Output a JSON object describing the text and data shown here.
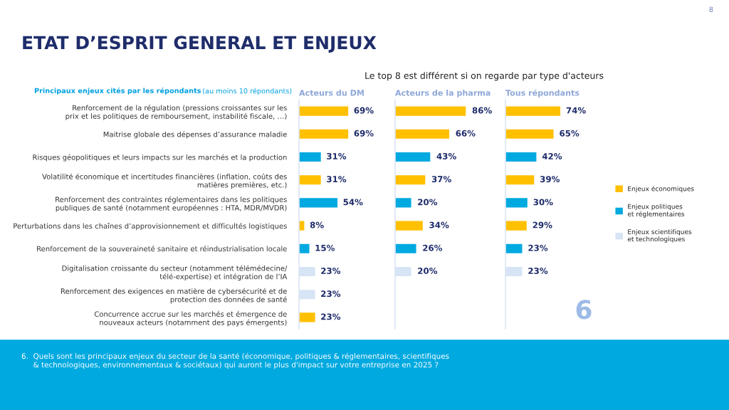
{
  "chart_data": [
    {
      "type": "bar",
      "orientation": "horizontal",
      "title": "Acteurs du DM",
      "tick_labels": "y",
      "legend": false,
      "categories": [
        "Renforcement de la régulation (pressions croissantes sur les\nprix et les politiques de remboursement, instabilité fiscale, …)",
        "Maitrise globale des dépenses d’assurance maladie",
        "Risques géopolitiques et leurs impacts sur les marchés et la production",
        "Volatilité économique et incertitudes financières (inflation, coûts des\nmatières premières, etc.)",
        "Renforcement des contraintes réglementaires dans les politiques\npubliques de santé (notamment européennes : HTA, MDR/MVDR)",
        "Perturbations dans les chaînes d’approvisionnement et difficultés logistiques",
        "Renforcement de la souveraineté sanitaire et réindustrialisation locale",
        "Digitalisation croissante du secteur (notamment télémédecine/\ntélé-expertise) et intégration de l’IA",
        "Renforcement des exigences en matière de cybersécurité et de\nprotection des données de santé",
        "Concurrence accrue sur les marchés et émergence de\nnouveaux acteurs (notamment des pays émergents)"
      ],
      "series": [
        {
          "color": "#ffc000",
          "values": [
            69,
            69,
            null,
            31,
            null,
            8,
            null,
            null,
            null,
            23
          ],
          "value_labels": [
            "69%",
            "69%",
            null,
            "31%",
            null,
            "8%",
            null,
            null,
            null,
            "23%"
          ]
        },
        {
          "color": "#00a9e0",
          "values": [
            null,
            null,
            31,
            null,
            54,
            null,
            15,
            null,
            null,
            null
          ],
          "value_labels": [
            null,
            null,
            "31%",
            null,
            "54%",
            null,
            "15%",
            null,
            null,
            null
          ]
        },
        {
          "color": "#d6e4f5",
          "values": [
            null,
            null,
            null,
            null,
            null,
            null,
            null,
            23,
            23,
            null
          ],
          "value_labels": [
            null,
            null,
            null,
            null,
            null,
            null,
            null,
            "23%",
            "23%",
            null
          ]
        }
      ],
      "annotations": [
        "ETAT D’ESPRIT GENERAL ET ENJEUX",
        "Le top 8 est différent si on regarde par type d'acteurs",
        "Principaux enjeux cités par les répondants",
        "(au moins 10 répondants)",
        "6.  Quels sont les principaux enjeux du secteur de la santé (économique, politiques & réglementaires, scientifiques\n     & technologiques, environnementaux & sociétaux) qui auront le plus d'impact sur votre entreprise en 2025 ?",
        "8",
        "6"
      ]
    },
    {
      "type": "bar",
      "orientation": "horizontal",
      "title": "Acteurs de la pharma",
      "tick_labels": false,
      "legend": false,
      "series": [
        {
          "color": "#ffc000",
          "values": [
            86,
            66,
            null,
            37,
            null,
            34,
            null,
            null,
            null,
            null
          ],
          "value_labels": [
            "86%",
            "66%",
            null,
            "37%",
            null,
            "34%",
            null,
            null,
            null,
            null
          ]
        },
        {
          "color": "#00a9e0",
          "values": [
            null,
            null,
            43,
            null,
            20,
            null,
            26,
            null,
            null,
            null
          ],
          "value_labels": [
            null,
            null,
            "43%",
            null,
            "20%",
            null,
            "26%",
            null,
            null,
            null
          ]
        },
        {
          "color": "#d6e4f5",
          "values": [
            null,
            null,
            null,
            null,
            null,
            null,
            null,
            20,
            null,
            null
          ],
          "value_labels": [
            null,
            null,
            null,
            null,
            null,
            null,
            null,
            "20%",
            null,
            null
          ]
        }
      ]
    },
    {
      "type": "bar",
      "orientation": "horizontal",
      "title": "Tous répondants",
      "tick_labels": false,
      "legend": "right",
      "series": [
        {
          "name": "Enjeux économiques",
          "color": "#ffc000",
          "values": [
            74,
            65,
            null,
            39,
            null,
            29,
            null,
            null,
            null,
            null
          ],
          "value_labels": [
            "74%",
            "65%",
            null,
            "39%",
            null,
            "29%",
            null,
            null,
            null,
            null
          ]
        },
        {
          "name": "Enjeux politiques\net réglementaires",
          "color": "#00a9e0",
          "values": [
            null,
            null,
            42,
            null,
            30,
            null,
            23,
            null,
            null,
            null
          ],
          "value_labels": [
            null,
            null,
            "42%",
            null,
            "30%",
            null,
            "23%",
            null,
            null,
            null
          ]
        },
        {
          "name": "Enjeux scientifiques\net technologiques",
          "color": "#d6e4f5",
          "values": [
            null,
            null,
            null,
            null,
            null,
            null,
            null,
            23,
            null,
            null
          ],
          "value_labels": [
            null,
            null,
            null,
            null,
            null,
            null,
            null,
            "23%",
            null,
            null
          ]
        }
      ]
    }
  ]
}
